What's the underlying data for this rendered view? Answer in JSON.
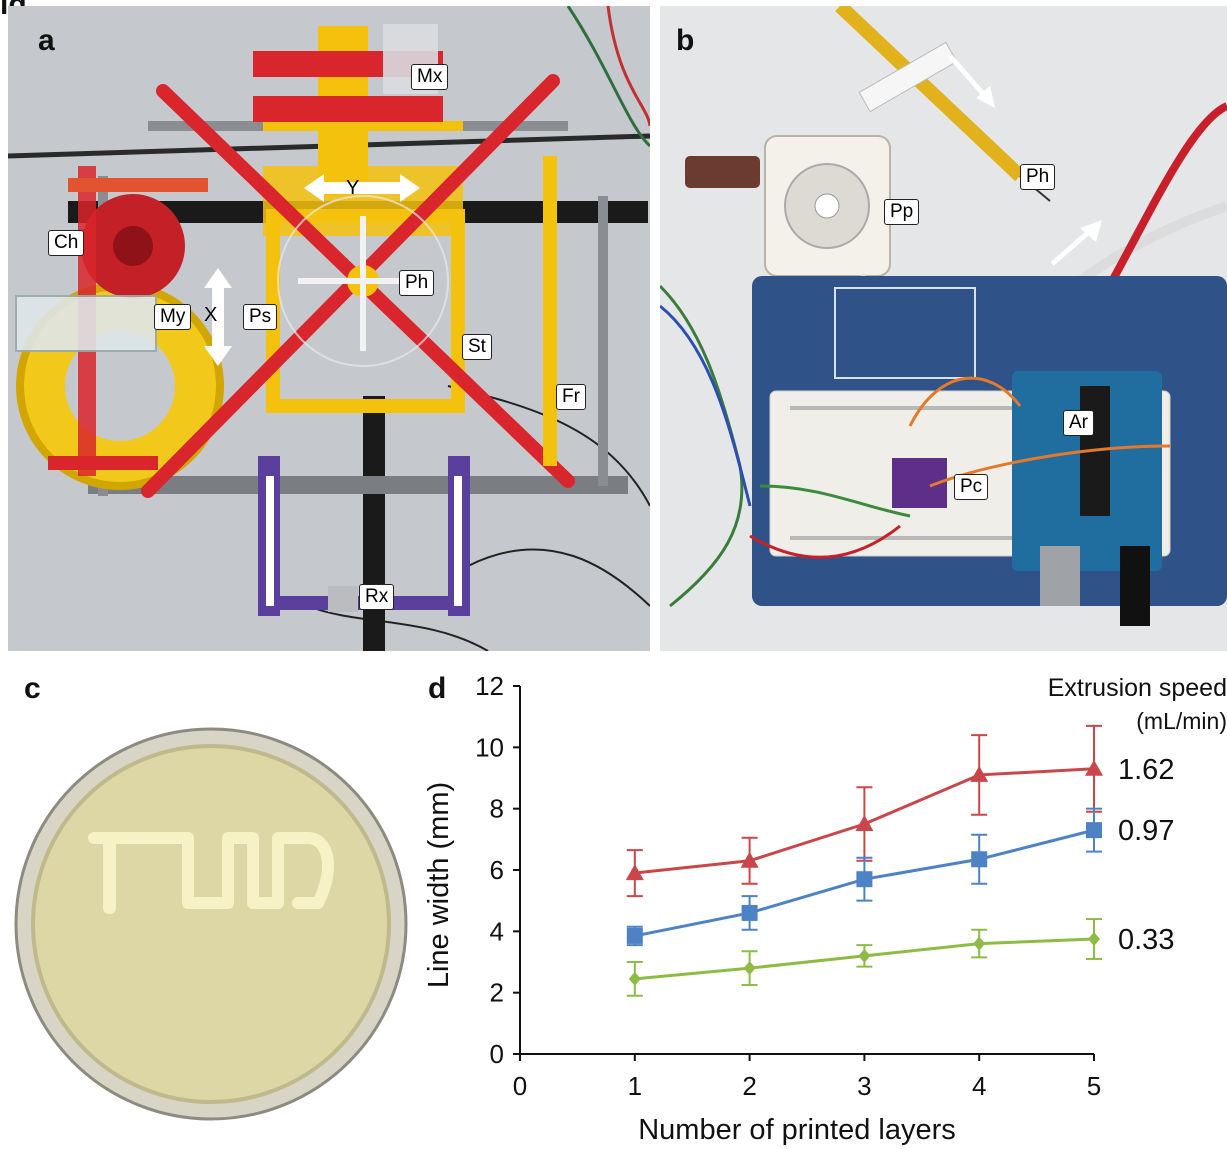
{
  "figure": {
    "partial_heading": "ig",
    "panels": {
      "a": {
        "letter": "a",
        "labels": {
          "Mx": "Mx",
          "Y": "Y",
          "Ch": "Ch",
          "My": "My",
          "X": "X",
          "Ps": "Ps",
          "Ph": "Ph",
          "St": "St",
          "Fr": "Fr",
          "Rx": "Rx"
        }
      },
      "b": {
        "letter": "b",
        "labels": {
          "Ph": "Ph",
          "Pp": "Pp",
          "Ar": "Ar",
          "Pc": "Pc"
        }
      },
      "c": {
        "letter": "c"
      },
      "d": {
        "letter": "d"
      }
    }
  },
  "chart_data": {
    "type": "line",
    "xlabel": "Number of printed layers",
    "ylabel": "Line width (mm)",
    "xlim": [
      0,
      5
    ],
    "ylim": [
      0,
      12
    ],
    "xticks": [
      0,
      1,
      2,
      3,
      4,
      5
    ],
    "yticks": [
      0,
      2,
      4,
      6,
      8,
      10,
      12
    ],
    "legend_title": "Extrusion speed",
    "legend_units": "(mL/min)",
    "x": [
      1,
      2,
      3,
      4,
      5
    ],
    "series": [
      {
        "name": "1.62",
        "marker": "triangle",
        "color": "#c9464a",
        "values": [
          5.9,
          6.3,
          7.5,
          9.1,
          9.3
        ],
        "errors": [
          0.75,
          0.75,
          1.2,
          1.3,
          1.4
        ]
      },
      {
        "name": "0.97",
        "marker": "square",
        "color": "#4d83c5",
        "values": [
          3.85,
          4.6,
          5.7,
          6.35,
          7.3
        ],
        "errors": [
          0.3,
          0.55,
          0.7,
          0.8,
          0.7
        ]
      },
      {
        "name": "0.33",
        "marker": "diamond",
        "color": "#8dbb45",
        "values": [
          2.45,
          2.8,
          3.2,
          3.6,
          3.75
        ],
        "errors": [
          0.55,
          0.55,
          0.35,
          0.45,
          0.65
        ]
      }
    ],
    "grid": false
  },
  "colors": {
    "frame_red": "#d8262c",
    "frame_yellow": "#f4c20d",
    "frame_purple": "#5a3f9c",
    "board_blue": "#2c4f86",
    "agar_plate": "#ddd7a2",
    "printed_line": "#f4f0c0"
  }
}
